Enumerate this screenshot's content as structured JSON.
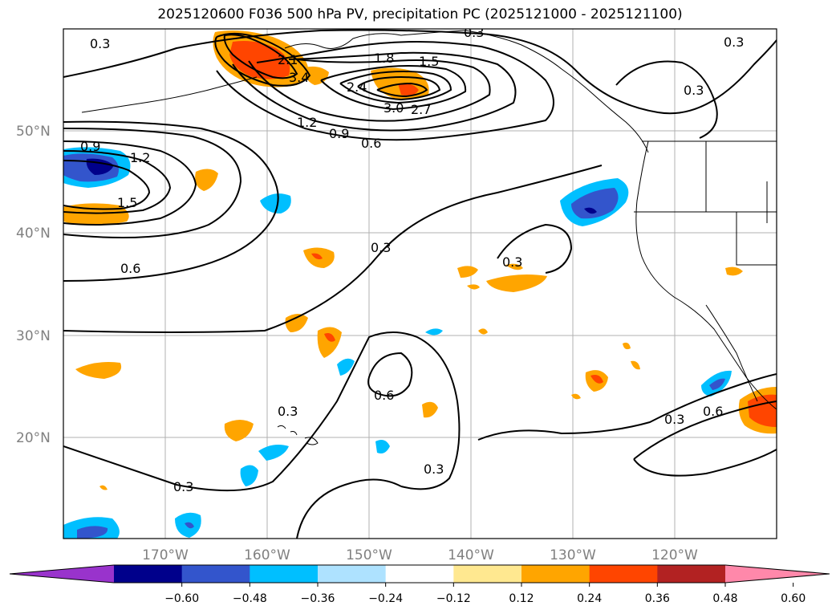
{
  "title": "2025120600 F036 500 hPa PV, precipitation PC (2025121000 - 2025121100)",
  "lat_labels": [
    "50°N",
    "40°N",
    "30°N",
    "20°N"
  ],
  "lon_labels": [
    "170°W",
    "160°W",
    "150°W",
    "140°W",
    "130°W",
    "120°W"
  ],
  "contour_labels": [
    "0.3",
    "0.3",
    "0.3",
    "0.3",
    "0.3",
    "0.3",
    "0.3",
    "0.3",
    "0.6",
    "0.6",
    "0.6",
    "0.6",
    "0.9",
    "0.9",
    "1.2",
    "1.2",
    "1.5",
    "1.5",
    "1.8",
    "2.1",
    "2.4",
    "2.7",
    "3.0",
    "3.4"
  ],
  "colorbar": {
    "ticks": [
      "−0.60",
      "−0.48",
      "−0.36",
      "−0.24",
      "−0.12",
      "0.12",
      "0.24",
      "0.36",
      "0.48",
      "0.60"
    ],
    "colors": [
      "#9933cc",
      "#00008b",
      "#3355cc",
      "#00bfff",
      "#aee2ff",
      "#ffffff",
      "#ffe890",
      "#ffa500",
      "#ff4500",
      "#b22222",
      "#ff88aa"
    ]
  },
  "colors": {
    "blue_dark": "#00008b",
    "blue_mid": "#3355cc",
    "blue_light": "#00bfff",
    "orange": "#ffa500",
    "red_orange": "#ff4500"
  }
}
